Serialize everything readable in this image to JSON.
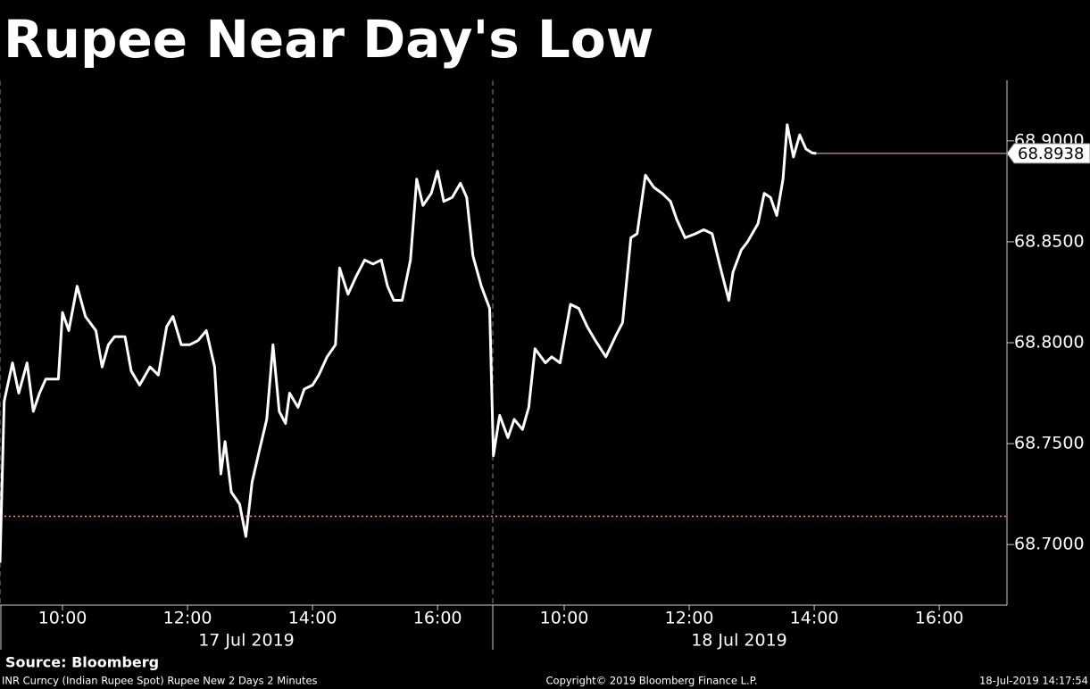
{
  "chart_data": {
    "type": "line",
    "title": "Rupee Near Day's Low",
    "source": "Source: Bloomberg",
    "footer_left": "INR Curncy (Indian Rupee Spot) Rupee New 2 Days 2 Minutes",
    "footer_center": "Copyright© 2019 Bloomberg Finance L.P.",
    "footer_right": "18-Jul-2019 14:17:54",
    "day_labels": [
      "17 Jul 2019",
      "18 Jul 2019"
    ],
    "color": "#ffffff",
    "reference_line": 68.714,
    "reference_color": "#e8a070",
    "last_line_color": "#f4c7a5",
    "x": [
      "2019-07-17 09:00",
      "2019-07-17 09:04",
      "2019-07-17 09:12",
      "2019-07-17 09:18",
      "2019-07-17 09:26",
      "2019-07-17 09:32",
      "2019-07-17 09:38",
      "2019-07-17 09:44",
      "2019-07-17 09:56",
      "2019-07-17 10:00",
      "2019-07-17 10:06",
      "2019-07-17 10:14",
      "2019-07-17 10:22",
      "2019-07-17 10:32",
      "2019-07-17 10:38",
      "2019-07-17 10:44",
      "2019-07-17 10:50",
      "2019-07-17 11:00",
      "2019-07-17 11:06",
      "2019-07-17 11:14",
      "2019-07-17 11:24",
      "2019-07-17 11:32",
      "2019-07-17 11:40",
      "2019-07-17 11:46",
      "2019-07-17 11:54",
      "2019-07-17 12:02",
      "2019-07-17 12:10",
      "2019-07-17 12:18",
      "2019-07-17 12:26",
      "2019-07-17 12:32",
      "2019-07-17 12:36",
      "2019-07-17 12:42",
      "2019-07-17 12:50",
      "2019-07-17 12:56",
      "2019-07-17 13:02",
      "2019-07-17 13:10",
      "2019-07-17 13:16",
      "2019-07-17 13:22",
      "2019-07-17 13:28",
      "2019-07-17 13:34",
      "2019-07-17 13:38",
      "2019-07-17 13:46",
      "2019-07-17 13:52",
      "2019-07-17 14:00",
      "2019-07-17 14:06",
      "2019-07-17 14:14",
      "2019-07-17 14:22",
      "2019-07-17 14:26",
      "2019-07-17 14:34",
      "2019-07-17 14:42",
      "2019-07-17 14:50",
      "2019-07-17 14:58",
      "2019-07-17 15:06",
      "2019-07-17 15:12",
      "2019-07-17 15:18",
      "2019-07-17 15:26",
      "2019-07-17 15:34",
      "2019-07-17 15:40",
      "2019-07-17 15:46",
      "2019-07-17 15:54",
      "2019-07-17 16:00",
      "2019-07-17 16:06",
      "2019-07-17 16:14",
      "2019-07-17 16:22",
      "2019-07-17 16:28",
      "2019-07-17 16:34",
      "2019-07-17 16:42",
      "2019-07-17 16:50",
      "2019-07-18 08:52",
      "2019-07-18 08:58",
      "2019-07-18 09:06",
      "2019-07-18 09:12",
      "2019-07-18 09:20",
      "2019-07-18 09:26",
      "2019-07-18 09:32",
      "2019-07-18 09:42",
      "2019-07-18 09:48",
      "2019-07-18 09:56",
      "2019-07-18 10:06",
      "2019-07-18 10:14",
      "2019-07-18 10:22",
      "2019-07-18 10:30",
      "2019-07-18 10:40",
      "2019-07-18 10:50",
      "2019-07-18 10:56",
      "2019-07-18 11:04",
      "2019-07-18 11:10",
      "2019-07-18 11:18",
      "2019-07-18 11:26",
      "2019-07-18 11:34",
      "2019-07-18 11:42",
      "2019-07-18 11:48",
      "2019-07-18 11:56",
      "2019-07-18 12:06",
      "2019-07-18 12:14",
      "2019-07-18 12:22",
      "2019-07-18 12:30",
      "2019-07-18 12:38",
      "2019-07-18 12:42",
      "2019-07-18 12:50",
      "2019-07-18 12:56",
      "2019-07-18 13:06",
      "2019-07-18 13:12",
      "2019-07-18 13:18",
      "2019-07-18 13:24",
      "2019-07-18 13:30",
      "2019-07-18 13:34",
      "2019-07-18 13:40",
      "2019-07-18 13:46",
      "2019-07-18 13:52",
      "2019-07-18 13:58",
      "2019-07-18 14:02"
    ],
    "values": [
      68.691,
      68.771,
      68.79,
      68.775,
      68.79,
      68.766,
      68.775,
      68.782,
      68.782,
      68.815,
      68.806,
      68.828,
      68.813,
      68.806,
      68.788,
      68.799,
      68.803,
      68.803,
      68.786,
      68.779,
      68.788,
      68.784,
      68.808,
      68.813,
      68.799,
      68.799,
      68.801,
      68.806,
      68.788,
      68.735,
      68.751,
      68.726,
      68.72,
      68.704,
      68.731,
      68.749,
      68.762,
      68.799,
      68.766,
      68.76,
      68.775,
      68.768,
      68.777,
      68.779,
      68.784,
      68.793,
      68.799,
      68.837,
      68.824,
      68.833,
      68.841,
      68.839,
      68.841,
      68.828,
      68.821,
      68.821,
      68.841,
      68.881,
      68.868,
      68.874,
      68.885,
      68.87,
      68.872,
      68.879,
      68.872,
      68.843,
      68.828,
      68.817,
      68.744,
      68.764,
      68.753,
      68.762,
      68.757,
      68.768,
      68.797,
      68.79,
      68.793,
      68.79,
      68.819,
      68.817,
      68.808,
      68.801,
      68.793,
      68.804,
      68.81,
      68.852,
      68.854,
      68.883,
      68.877,
      68.874,
      68.87,
      68.861,
      68.852,
      68.854,
      68.856,
      68.854,
      68.837,
      68.821,
      68.835,
      68.846,
      68.85,
      68.859,
      68.874,
      68.872,
      68.863,
      68.881,
      68.908,
      68.892,
      68.903,
      68.896,
      68.894,
      68.8938
    ],
    "xlim": [
      "2019-07-17 09:00",
      "2019-07-18 17:05"
    ],
    "xticks": [
      {
        "value": "2019-07-17 10:00",
        "label": "10:00"
      },
      {
        "value": "2019-07-17 12:00",
        "label": "12:00"
      },
      {
        "value": "2019-07-17 14:00",
        "label": "14:00"
      },
      {
        "value": "2019-07-17 16:00",
        "label": "16:00"
      },
      {
        "value": "2019-07-18 10:00",
        "label": "10:00"
      },
      {
        "value": "2019-07-18 12:00",
        "label": "12:00"
      },
      {
        "value": "2019-07-18 14:00",
        "label": "14:00"
      },
      {
        "value": "2019-07-18 16:00",
        "label": "16:00"
      }
    ],
    "ylim": [
      68.67,
      68.93
    ],
    "yticks": [
      {
        "value": 68.7,
        "label": "68.7000"
      },
      {
        "value": 68.75,
        "label": "68.7500"
      },
      {
        "value": 68.8,
        "label": "68.8000"
      },
      {
        "value": 68.85,
        "label": "68.8500"
      },
      {
        "value": 68.9,
        "label": "68.9000"
      }
    ]
  }
}
